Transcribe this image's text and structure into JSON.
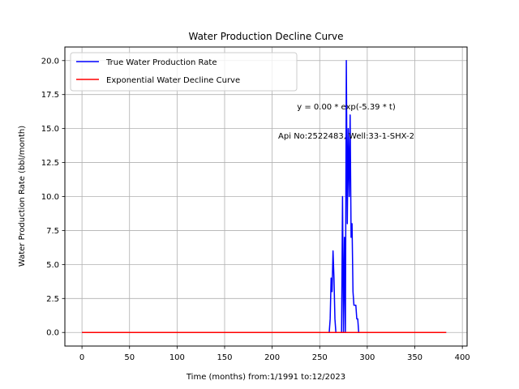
{
  "chart_data": {
    "type": "line",
    "title": "Water Production Decline Curve",
    "xlabel": "Time (months) from:1/1991 to:12/2023",
    "ylabel": "Water Production Rate (bbl/month)",
    "xlim": [
      -18,
      405
    ],
    "ylim": [
      -1.0,
      21.0
    ],
    "xticks": [
      0,
      50,
      100,
      150,
      200,
      250,
      300,
      350,
      400
    ],
    "yticks": [
      0.0,
      2.5,
      5.0,
      7.5,
      10.0,
      12.5,
      15.0,
      17.5,
      20.0
    ],
    "xtick_labels": [
      "0",
      "50",
      "100",
      "150",
      "200",
      "250",
      "300",
      "350",
      "400"
    ],
    "ytick_labels": [
      "0.0",
      "2.5",
      "5.0",
      "7.5",
      "10.0",
      "12.5",
      "15.0",
      "17.5",
      "20.0"
    ],
    "grid": true,
    "legend_position": "top-left",
    "annotations": [
      "y = 0.00 * exp(-5.39 * t)",
      "Api No:2522483, Well:33-1-SHX-2"
    ],
    "series": [
      {
        "name": "True Water Production Rate",
        "color": "#0000ff",
        "x": [
          0,
          260,
          261,
          262,
          263,
          264,
          265,
          266,
          267,
          268,
          269,
          270,
          271,
          272,
          273,
          274,
          275,
          276,
          277,
          278,
          279,
          280,
          281,
          282,
          283,
          284,
          285,
          286,
          287,
          288,
          289,
          290,
          291,
          292,
          293,
          294,
          383
        ],
        "y": [
          0,
          0,
          1,
          4,
          3,
          6,
          4,
          1,
          0,
          0,
          0,
          0,
          0,
          0,
          0,
          10,
          0,
          7,
          0,
          20,
          8,
          15,
          10,
          16,
          7,
          8,
          3,
          2,
          2,
          2,
          1,
          1,
          0,
          0,
          0,
          0,
          0
        ]
      },
      {
        "name": "Exponential Water Decline Curve",
        "color": "#ff0000",
        "x": [
          0,
          383
        ],
        "y": [
          0,
          0
        ]
      }
    ]
  }
}
